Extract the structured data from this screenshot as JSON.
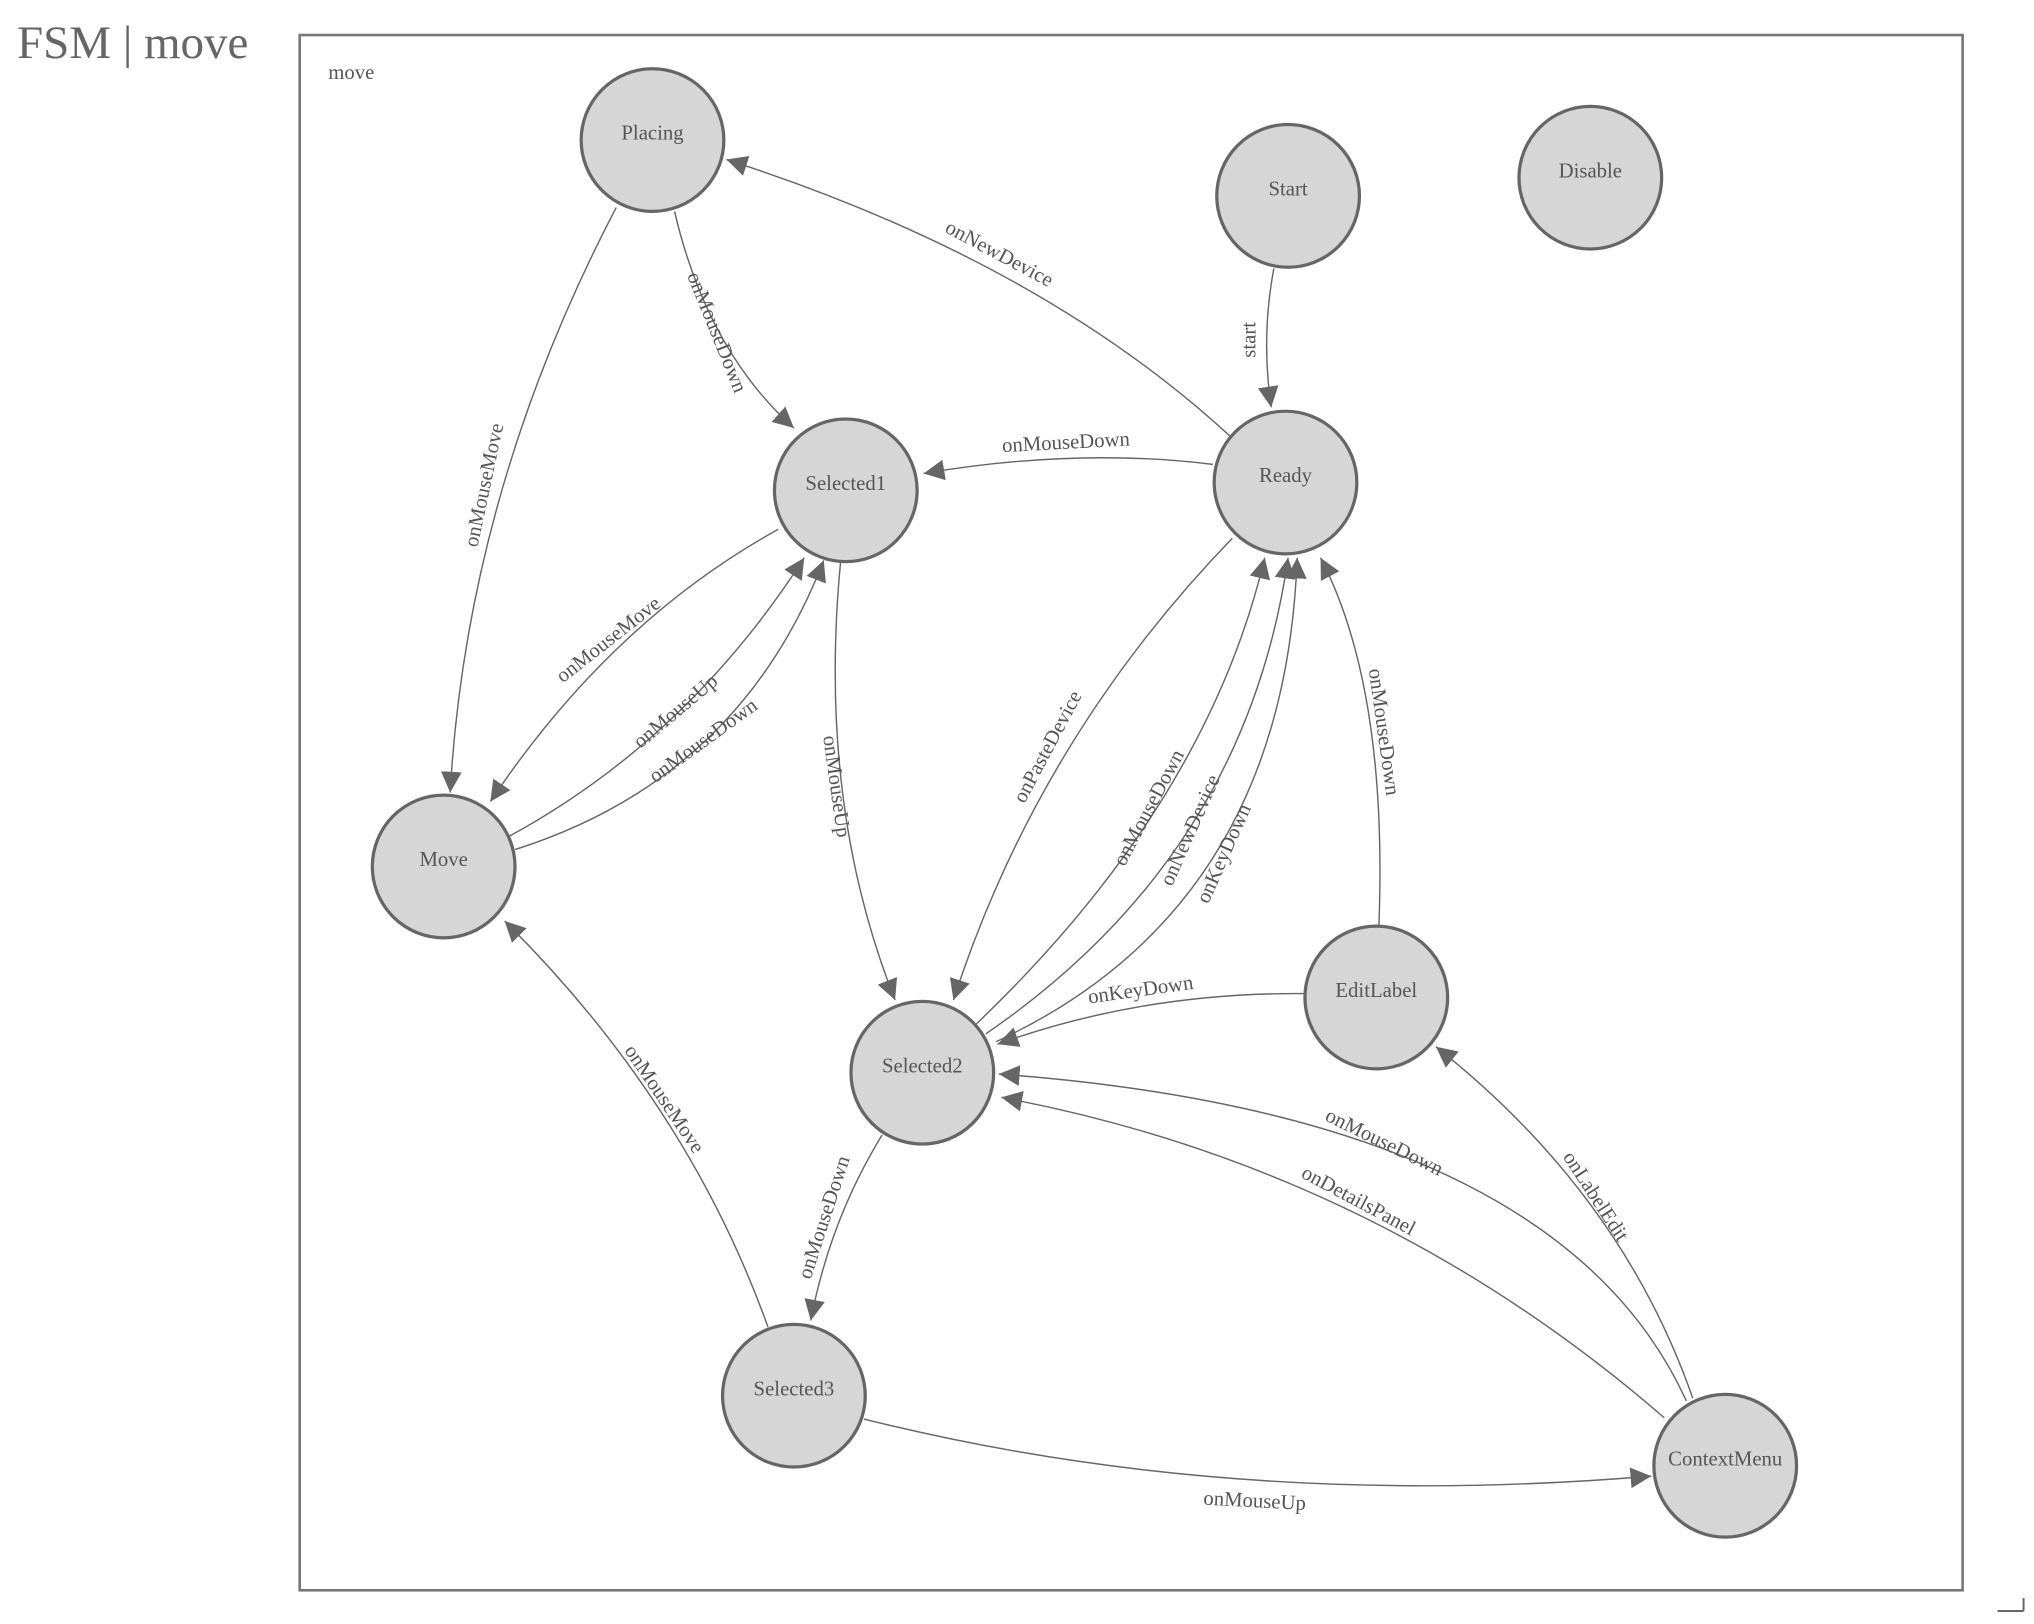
{
  "title": "FSM | move",
  "diagram": {
    "container_label": "move",
    "colors": {
      "node_fill": "#d6d6d6",
      "stroke": "#666666",
      "text": "#555555"
    },
    "nodes": [
      {
        "id": "Placing",
        "label": "Placing"
      },
      {
        "id": "Start",
        "label": "Start"
      },
      {
        "id": "Disable",
        "label": "Disable"
      },
      {
        "id": "Selected1",
        "label": "Selected1"
      },
      {
        "id": "Ready",
        "label": "Ready"
      },
      {
        "id": "Move",
        "label": "Move"
      },
      {
        "id": "EditLabel",
        "label": "EditLabel"
      },
      {
        "id": "Selected2",
        "label": "Selected2"
      },
      {
        "id": "Selected3",
        "label": "Selected3"
      },
      {
        "id": "ContextMenu",
        "label": "ContextMenu"
      }
    ],
    "edges": [
      {
        "from": "Start",
        "to": "Ready",
        "label": "start"
      },
      {
        "from": "Ready",
        "to": "Placing",
        "label": "onNewDevice"
      },
      {
        "from": "Placing",
        "to": "Selected1",
        "label": "onMouseDown"
      },
      {
        "from": "Placing",
        "to": "Move",
        "label": "onMouseMove"
      },
      {
        "from": "Ready",
        "to": "Selected1",
        "label": "onMouseDown"
      },
      {
        "from": "Selected1",
        "to": "Move",
        "label": "onMouseMove"
      },
      {
        "from": "Move",
        "to": "Selected1",
        "label": "onMouseUp"
      },
      {
        "from": "Move",
        "to": "Selected1",
        "label": "onMouseDown"
      },
      {
        "from": "Selected1",
        "to": "Selected2",
        "label": "onMouseUp"
      },
      {
        "from": "Ready",
        "to": "Selected2",
        "label": "onPasteDevice"
      },
      {
        "from": "Selected2",
        "to": "Ready",
        "label": "onMouseDown"
      },
      {
        "from": "Selected2",
        "to": "Ready",
        "label": "onNewDevice"
      },
      {
        "from": "Selected2",
        "to": "Ready",
        "label": "onKeyDown"
      },
      {
        "from": "EditLabel",
        "to": "Ready",
        "label": "onMouseDown"
      },
      {
        "from": "EditLabel",
        "to": "Selected2",
        "label": "onKeyDown"
      },
      {
        "from": "Selected2",
        "to": "Selected3",
        "label": "onMouseDown"
      },
      {
        "from": "Selected3",
        "to": "Move",
        "label": "onMouseMove"
      },
      {
        "from": "Selected3",
        "to": "ContextMenu",
        "label": "onMouseUp"
      },
      {
        "from": "ContextMenu",
        "to": "Selected2",
        "label": "onMouseDown"
      },
      {
        "from": "ContextMenu",
        "to": "Selected2",
        "label": "onDetailsPanel"
      },
      {
        "from": "ContextMenu",
        "to": "EditLabel",
        "label": "onLabelEdit"
      }
    ]
  }
}
